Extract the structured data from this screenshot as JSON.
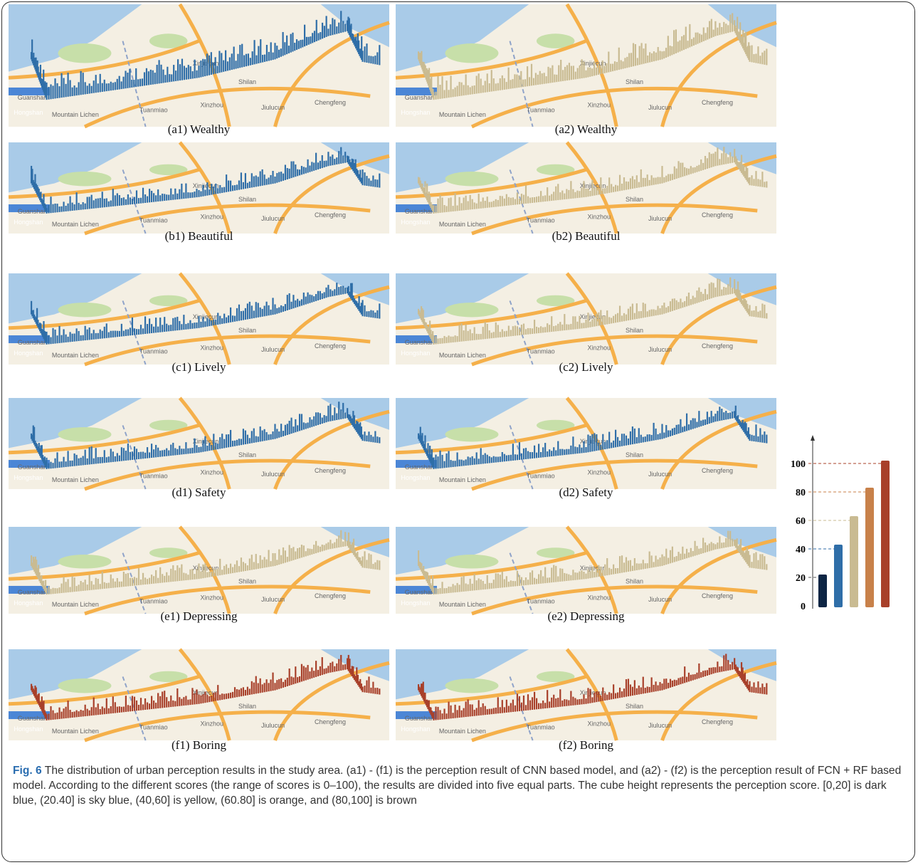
{
  "panels": [
    {
      "label": "(a1) Wealthy",
      "color": "#2f6ea8"
    },
    {
      "label": "(a2) Wealthy",
      "color": "#c9bb92"
    },
    {
      "label": "(b1) Beautiful",
      "color": "#2f6ea8"
    },
    {
      "label": "(b2) Beautiful",
      "color": "#c9bb92"
    },
    {
      "label": "(c1) Lively",
      "color": "#2f6ea8"
    },
    {
      "label": "(c2) Lively",
      "color": "#c9bb92"
    },
    {
      "label": "(d1) Safety",
      "color": "#2f6ea8"
    },
    {
      "label": "(d2) Safety",
      "color": "#2f6ea8"
    },
    {
      "label": "(e1) Depressing",
      "color": "#c9bb92"
    },
    {
      "label": "(e2) Depressing",
      "color": "#c9bb92"
    },
    {
      "label": "(f1) Boring",
      "color": "#a8402a"
    },
    {
      "label": "(f2) Boring",
      "color": "#a8402a"
    }
  ],
  "map_labels": [
    "Hongshan",
    "Guanshan",
    "Mountain Lichen",
    "Tuanmiao",
    "Xinzhou",
    "Chengfeng",
    "Jiulucun",
    "Xinjiecun",
    "Shilan"
  ],
  "legend": {
    "type": "bar",
    "values": [
      22,
      43,
      63,
      83,
      102
    ],
    "colors": [
      "#0d2544",
      "#2f6ea8",
      "#c9bb92",
      "#c8814a",
      "#a8402a"
    ],
    "ylim": [
      0,
      115
    ],
    "yticks": [
      0,
      20,
      40,
      60,
      80,
      100
    ]
  },
  "caption": {
    "label": "Fig. 6",
    "text": "The distribution of urban perception results in the study area. (a1) - (f1) is the perception result of CNN based model, and (a2) - (f2) is the perception result of FCN + RF based model. According to the different scores (the range of scores is 0–100), the results are divided into five equal parts. The cube height represents the perception score. [0,20] is dark blue, (20.40] is sky blue, (40,60] is yellow, (60.80] is orange, and (80,100] is brown"
  }
}
